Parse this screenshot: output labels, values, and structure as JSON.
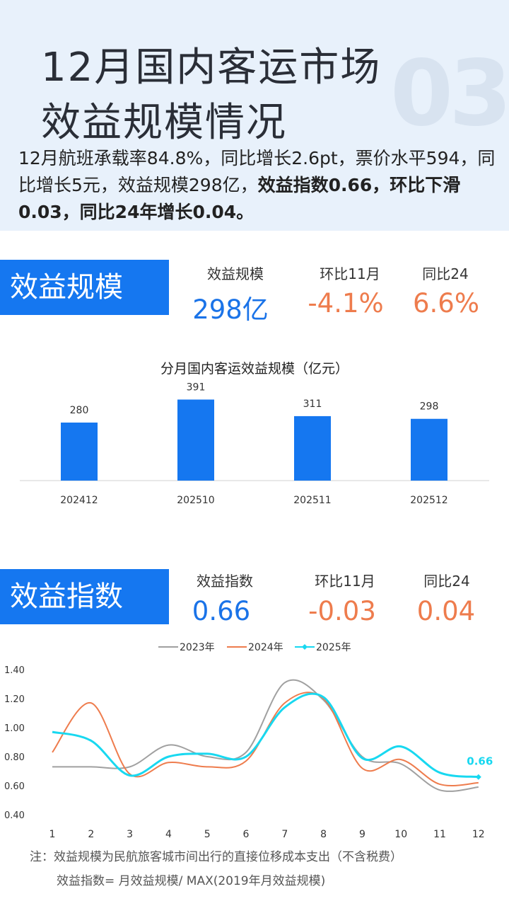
{
  "header": {
    "title_line1": "12月国内客运市场",
    "title_line2": "效益规模情况",
    "section_number": "03",
    "summary_normal": "12月航班承载率84.8%，同比增长2.6pt，票价水平594，同比增长5元，效益规模298亿，",
    "summary_bold": "效益指数0.66，环比下滑0.03，同比24年增长0.04。"
  },
  "scale_section": {
    "label": "效益规模",
    "kpis": [
      {
        "label": "效益规模",
        "value": "298亿"
      },
      {
        "label": "环比11月",
        "value": "-4.1%"
      },
      {
        "label": "同比24",
        "value": "6.6%"
      }
    ]
  },
  "index_section": {
    "label": "效益指数",
    "kpis": [
      {
        "label": "效益指数",
        "value": "0.66"
      },
      {
        "label": "环比11月",
        "value": "-0.03"
      },
      {
        "label": "同比24",
        "value": "0.04"
      }
    ]
  },
  "colors": {
    "accent_blue": "#1577f0",
    "kpi_blue": "#1a73e8",
    "kpi_orange": "#ee7c4d",
    "series_2023": "#a0a0a0",
    "series_2024": "#ee7c4d",
    "series_2025": "#18d8f0"
  },
  "chart_data": [
    {
      "type": "bar",
      "title": "分月国内客运效益规模（亿元）",
      "categories": [
        "202412",
        "202510",
        "202511",
        "202512"
      ],
      "values": [
        280,
        391,
        311,
        298
      ],
      "ylim": [
        0,
        420
      ],
      "grid": false
    },
    {
      "type": "line",
      "x": [
        "1",
        "2",
        "3",
        "4",
        "5",
        "6",
        "7",
        "8",
        "9",
        "10",
        "11",
        "12"
      ],
      "ylim": [
        0.4,
        1.4
      ],
      "yticks": [
        "1.40",
        "1.20",
        "1.00",
        "0.80",
        "0.60",
        "0.40"
      ],
      "legend_position": "top",
      "grid": false,
      "series": [
        {
          "name": "2023年",
          "values": [
            0.73,
            0.73,
            0.73,
            0.88,
            0.8,
            0.83,
            1.31,
            1.19,
            0.8,
            0.75,
            0.57,
            0.59
          ]
        },
        {
          "name": "2024年",
          "values": [
            0.83,
            1.17,
            0.68,
            0.76,
            0.73,
            0.77,
            1.17,
            1.2,
            0.72,
            0.78,
            0.61,
            0.62
          ]
        },
        {
          "name": "2025年",
          "values": [
            0.97,
            0.91,
            0.67,
            0.8,
            0.82,
            0.8,
            1.14,
            1.21,
            0.79,
            0.87,
            0.69,
            0.66
          ]
        }
      ],
      "end_label": "0.66"
    }
  ],
  "notes": {
    "line1": "注：效益规模为民航旅客城市间出行的直接位移成本支出（不含税费）",
    "line2": "效益指数= 月效益规模/ MAX(2019年月效益规模)"
  }
}
